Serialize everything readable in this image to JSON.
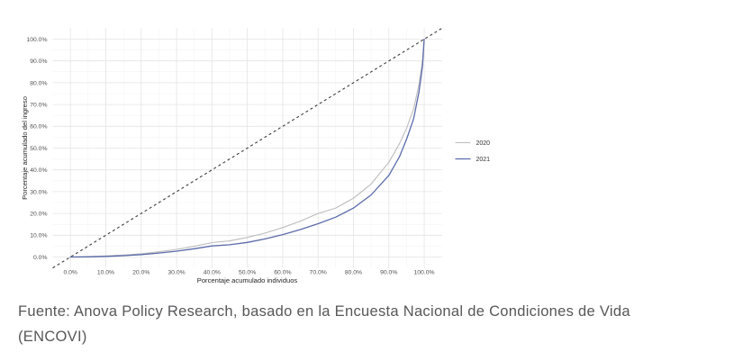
{
  "chart_data": {
    "type": "line",
    "title": "",
    "xlabel": "Porcentaje acumulado individuos",
    "ylabel": "Porcentaje acumulado del ingreso",
    "x_tick_values": [
      0,
      10,
      20,
      30,
      40,
      50,
      60,
      70,
      80,
      90,
      100
    ],
    "x_tick_labels": [
      "0.0%",
      "10.0%",
      "20.0%",
      "30.0%",
      "40.0%",
      "50.0%",
      "60.0%",
      "70.0%",
      "80.0%",
      "90.0%",
      "100.0%"
    ],
    "y_tick_values": [
      0,
      10,
      20,
      30,
      40,
      50,
      60,
      70,
      80,
      90,
      100
    ],
    "y_tick_labels": [
      "0.0%",
      "10.0%",
      "20.0%",
      "30.0%",
      "40.0%",
      "50.0%",
      "60.0%",
      "70.0%",
      "80.0%",
      "90.0%",
      "100.0%"
    ],
    "xlim": [
      -5,
      105
    ],
    "ylim": [
      -5,
      105
    ],
    "grid": {
      "major": true,
      "minor": true,
      "major_color": "#e4e4e4",
      "minor_color": "#f1f1f1"
    },
    "legend": {
      "position": "right-center",
      "entries": [
        "2020",
        "2021"
      ]
    },
    "equality_line": {
      "style": "dashed",
      "color": "#3d3d3d",
      "from": [
        -5,
        -5
      ],
      "to": [
        105,
        105
      ]
    },
    "series": [
      {
        "name": "2020",
        "color": "#bcbcbc",
        "width": 1.1,
        "x": [
          0,
          5,
          10,
          15,
          20,
          25,
          30,
          35,
          40,
          45,
          50,
          55,
          60,
          65,
          70,
          75,
          80,
          85,
          90,
          93,
          95,
          97,
          98.5,
          99.5,
          100
        ],
        "y": [
          0,
          0.2,
          0.5,
          0.9,
          1.5,
          2.4,
          3.5,
          4.9,
          6.6,
          7.4,
          9.0,
          11.0,
          13.5,
          16.5,
          20.0,
          22.5,
          27.0,
          33.5,
          43.5,
          52.0,
          59.0,
          68.0,
          79.0,
          90.0,
          100
        ]
      },
      {
        "name": "2021",
        "color": "#5a6bab",
        "width": 1.3,
        "x": [
          0,
          5,
          10,
          15,
          20,
          25,
          30,
          35,
          40,
          45,
          50,
          55,
          60,
          65,
          70,
          75,
          80,
          85,
          90,
          93,
          95,
          97,
          98.5,
          99.5,
          100
        ],
        "y": [
          0,
          0.1,
          0.3,
          0.6,
          1.1,
          1.8,
          2.7,
          3.8,
          5.1,
          5.6,
          6.7,
          8.3,
          10.3,
          12.6,
          15.3,
          18.3,
          22.5,
          28.5,
          37.5,
          46.0,
          54.0,
          63.5,
          75.5,
          87.5,
          100
        ]
      }
    ],
    "axis_text_color": "#4f4f4f"
  },
  "caption": {
    "line1": "Fuente: Anova Policy Research, basado en la Encuesta Nacional de Condiciones de Vida",
    "line2": "(ENCOVI)"
  }
}
